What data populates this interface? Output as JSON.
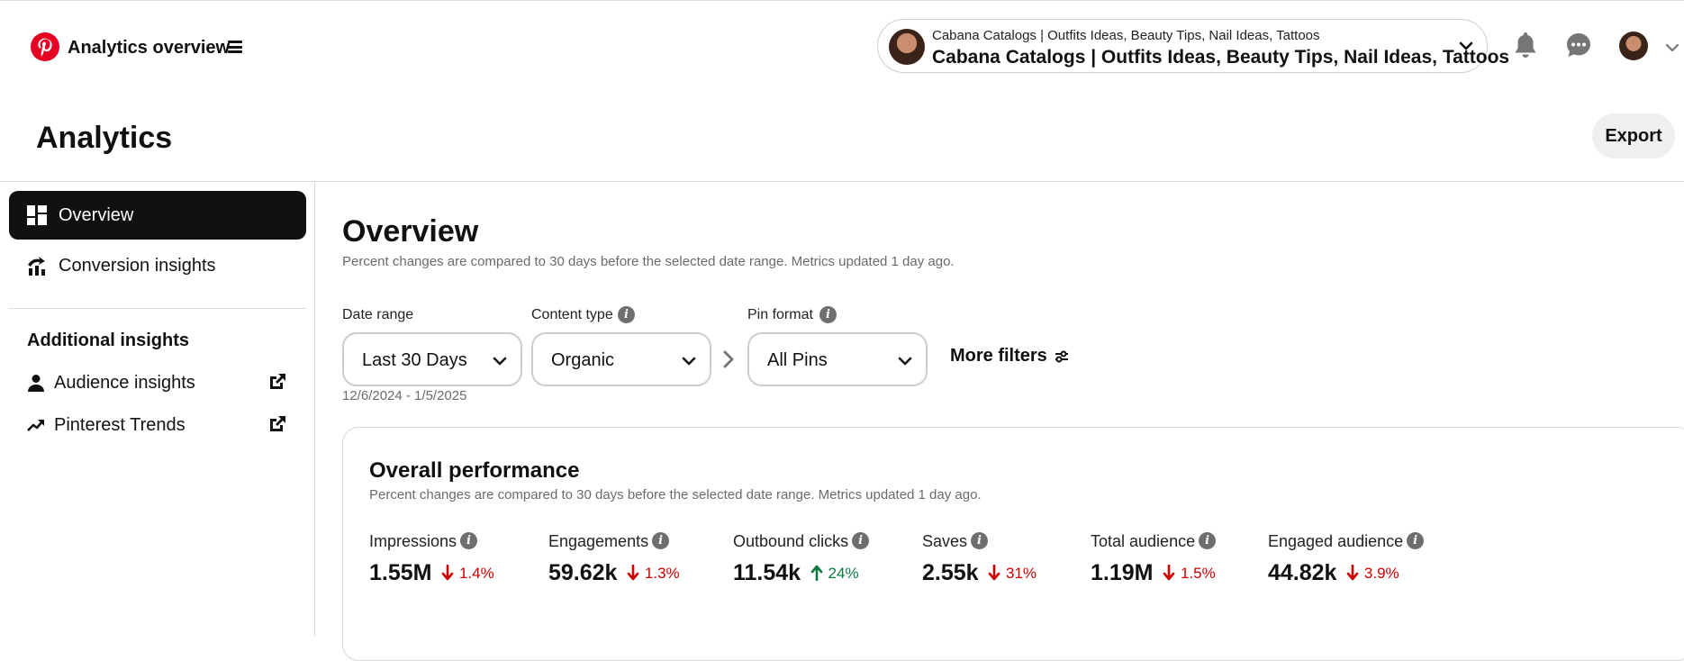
{
  "header": {
    "app_title": "Analytics overview",
    "account_small": "Cabana Catalogs | Outfits Ideas, Beauty Tips, Nail Ideas, Tattoos",
    "account_name": "Cabana Catalogs | Outfits Ideas, Beauty Tips, Nail Ideas, Tattoos",
    "icons": [
      "pinterest-logo-icon",
      "menu-icon",
      "bell-icon",
      "chat-icon",
      "chevron-down-icon"
    ]
  },
  "page": {
    "title": "Analytics",
    "export_label": "Export"
  },
  "sidebar": {
    "items": [
      {
        "label": "Overview",
        "icon": "dashboard-icon",
        "active": true
      },
      {
        "label": "Conversion insights",
        "icon": "conversion-icon",
        "active": false
      }
    ],
    "additional_heading": "Additional insights",
    "external_items": [
      {
        "label": "Audience insights",
        "icon": "person-icon"
      },
      {
        "label": "Pinterest Trends",
        "icon": "trend-icon"
      }
    ]
  },
  "overview": {
    "title": "Overview",
    "subtitle": "Percent changes are compared to 30 days before the selected date range. Metrics updated 1 day ago."
  },
  "filters": {
    "date_range_label": "Date range",
    "date_range_value": "Last 30 Days",
    "date_range_dates": "12/6/2024 - 1/5/2025",
    "content_type_label": "Content type",
    "content_type_value": "Organic",
    "pin_format_label": "Pin format",
    "pin_format_value": "All Pins",
    "more_filters_label": "More filters"
  },
  "performance": {
    "title": "Overall performance",
    "subtitle": "Percent changes are compared to 30 days before the selected date range. Metrics updated 1 day ago.",
    "metrics": [
      {
        "label": "Impressions",
        "value": "1.55M",
        "change": "1.4%",
        "direction": "down"
      },
      {
        "label": "Engagements",
        "value": "59.62k",
        "change": "1.3%",
        "direction": "down"
      },
      {
        "label": "Outbound clicks",
        "value": "11.54k",
        "change": "24%",
        "direction": "up"
      },
      {
        "label": "Saves",
        "value": "2.55k",
        "change": "31%",
        "direction": "down"
      },
      {
        "label": "Total audience",
        "value": "1.19M",
        "change": "1.5%",
        "direction": "down"
      },
      {
        "label": "Engaged audience",
        "value": "44.82k",
        "change": "3.9%",
        "direction": "down"
      }
    ]
  },
  "colors": {
    "brand_red": "#e60023",
    "down": "#cc0000",
    "up": "#0a7a3e",
    "active_nav": "#111111"
  }
}
